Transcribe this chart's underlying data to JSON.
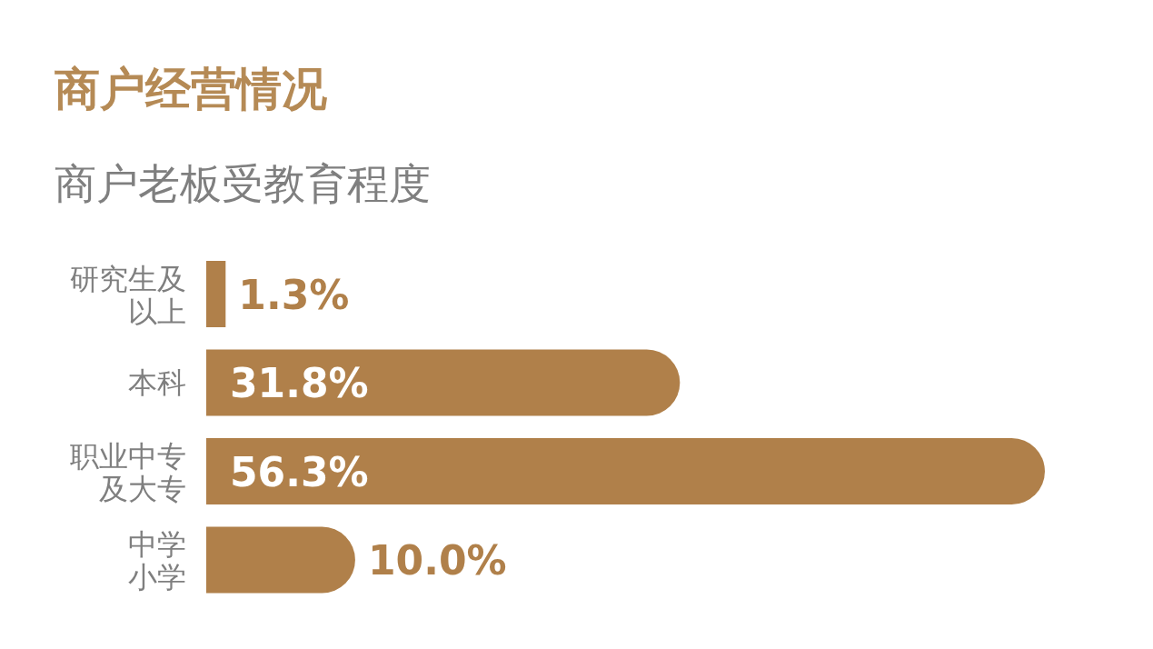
{
  "chart_data": {
    "type": "bar",
    "orientation": "horizontal",
    "title": "商户经营情况",
    "subtitle": "商户老板受教育程度",
    "categories": [
      "研究生及以上",
      "本科",
      "职业中专及大专",
      "中学小学"
    ],
    "values": [
      1.3,
      31.8,
      56.3,
      10.0
    ],
    "value_labels": [
      "1.3%",
      "31.8%",
      "56.3%",
      "10.0%"
    ],
    "color": "#b0804a"
  }
}
